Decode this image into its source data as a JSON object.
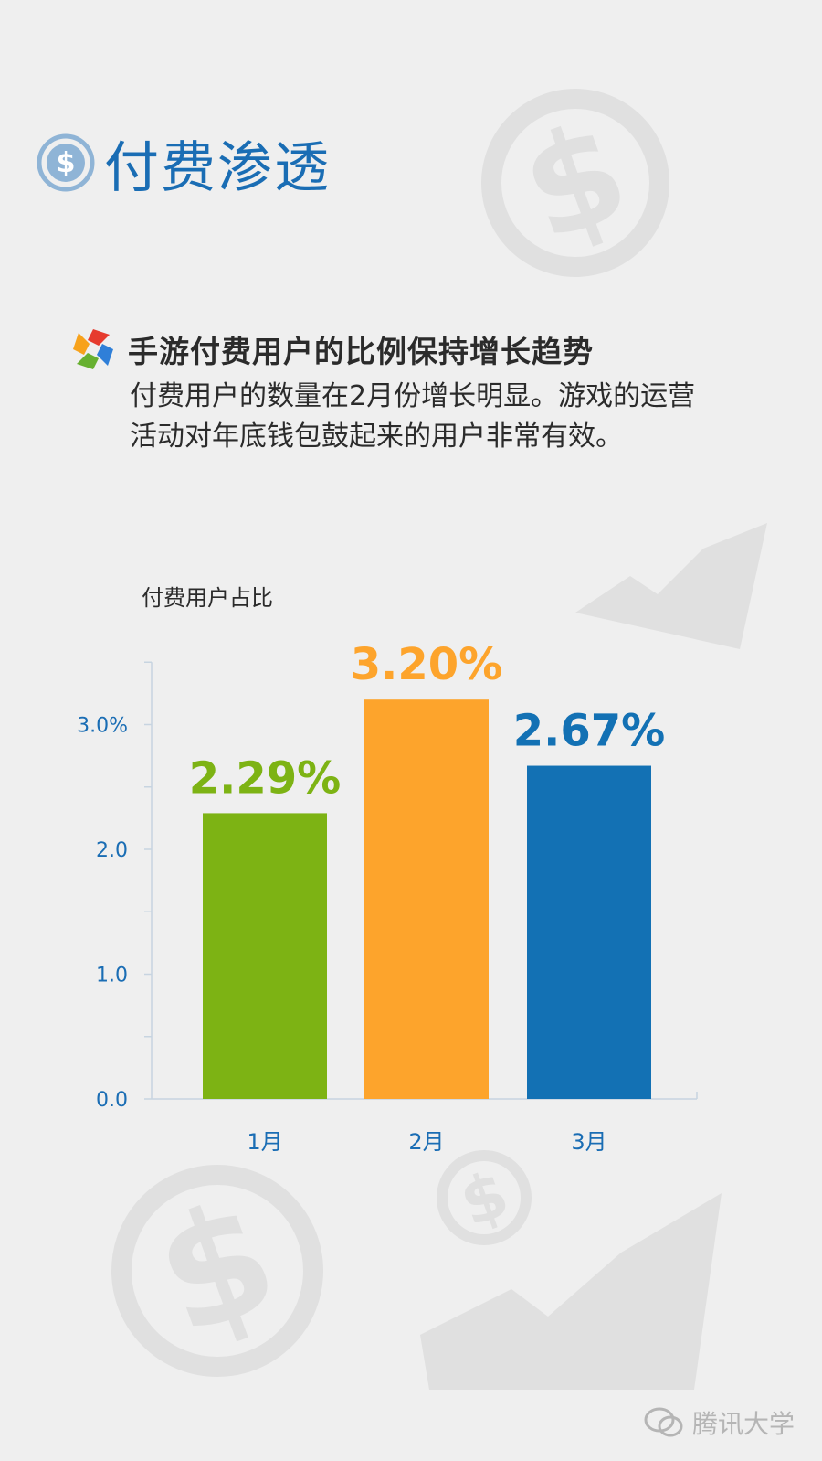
{
  "header": {
    "title": "付费渗透",
    "icon": "dollar-circle-icon"
  },
  "section": {
    "icon": "pinwheel-logo-icon",
    "subtitle": "手游付费用户的比例保持增长趋势",
    "description": "付费用户的数量在2月份增长明显。游戏的运营活动对年底钱包鼓起来的用户非常有效。"
  },
  "footer": {
    "brand": "腾讯大学",
    "icon": "wechat-icon"
  },
  "colors": {
    "title": "#1a6db4",
    "axis_text": "#1a6db4",
    "bar_jan": "#7db314",
    "bar_feb": "#fda42c",
    "bar_mar": "#1371b4"
  },
  "chart_data": {
    "type": "bar",
    "title": "付费用户占比",
    "categories": [
      "1月",
      "2月",
      "3月"
    ],
    "values": [
      2.29,
      3.2,
      2.67
    ],
    "value_labels": [
      "2.29%",
      "3.20%",
      "2.67%"
    ],
    "bar_colors": [
      "#7db314",
      "#fda42c",
      "#1371b4"
    ],
    "y_ticks": [
      "0.0",
      "1.0",
      "2.0",
      "3.0%"
    ],
    "ylim": [
      0,
      3.5
    ],
    "grid": false,
    "xlabel": "",
    "ylabel": ""
  }
}
